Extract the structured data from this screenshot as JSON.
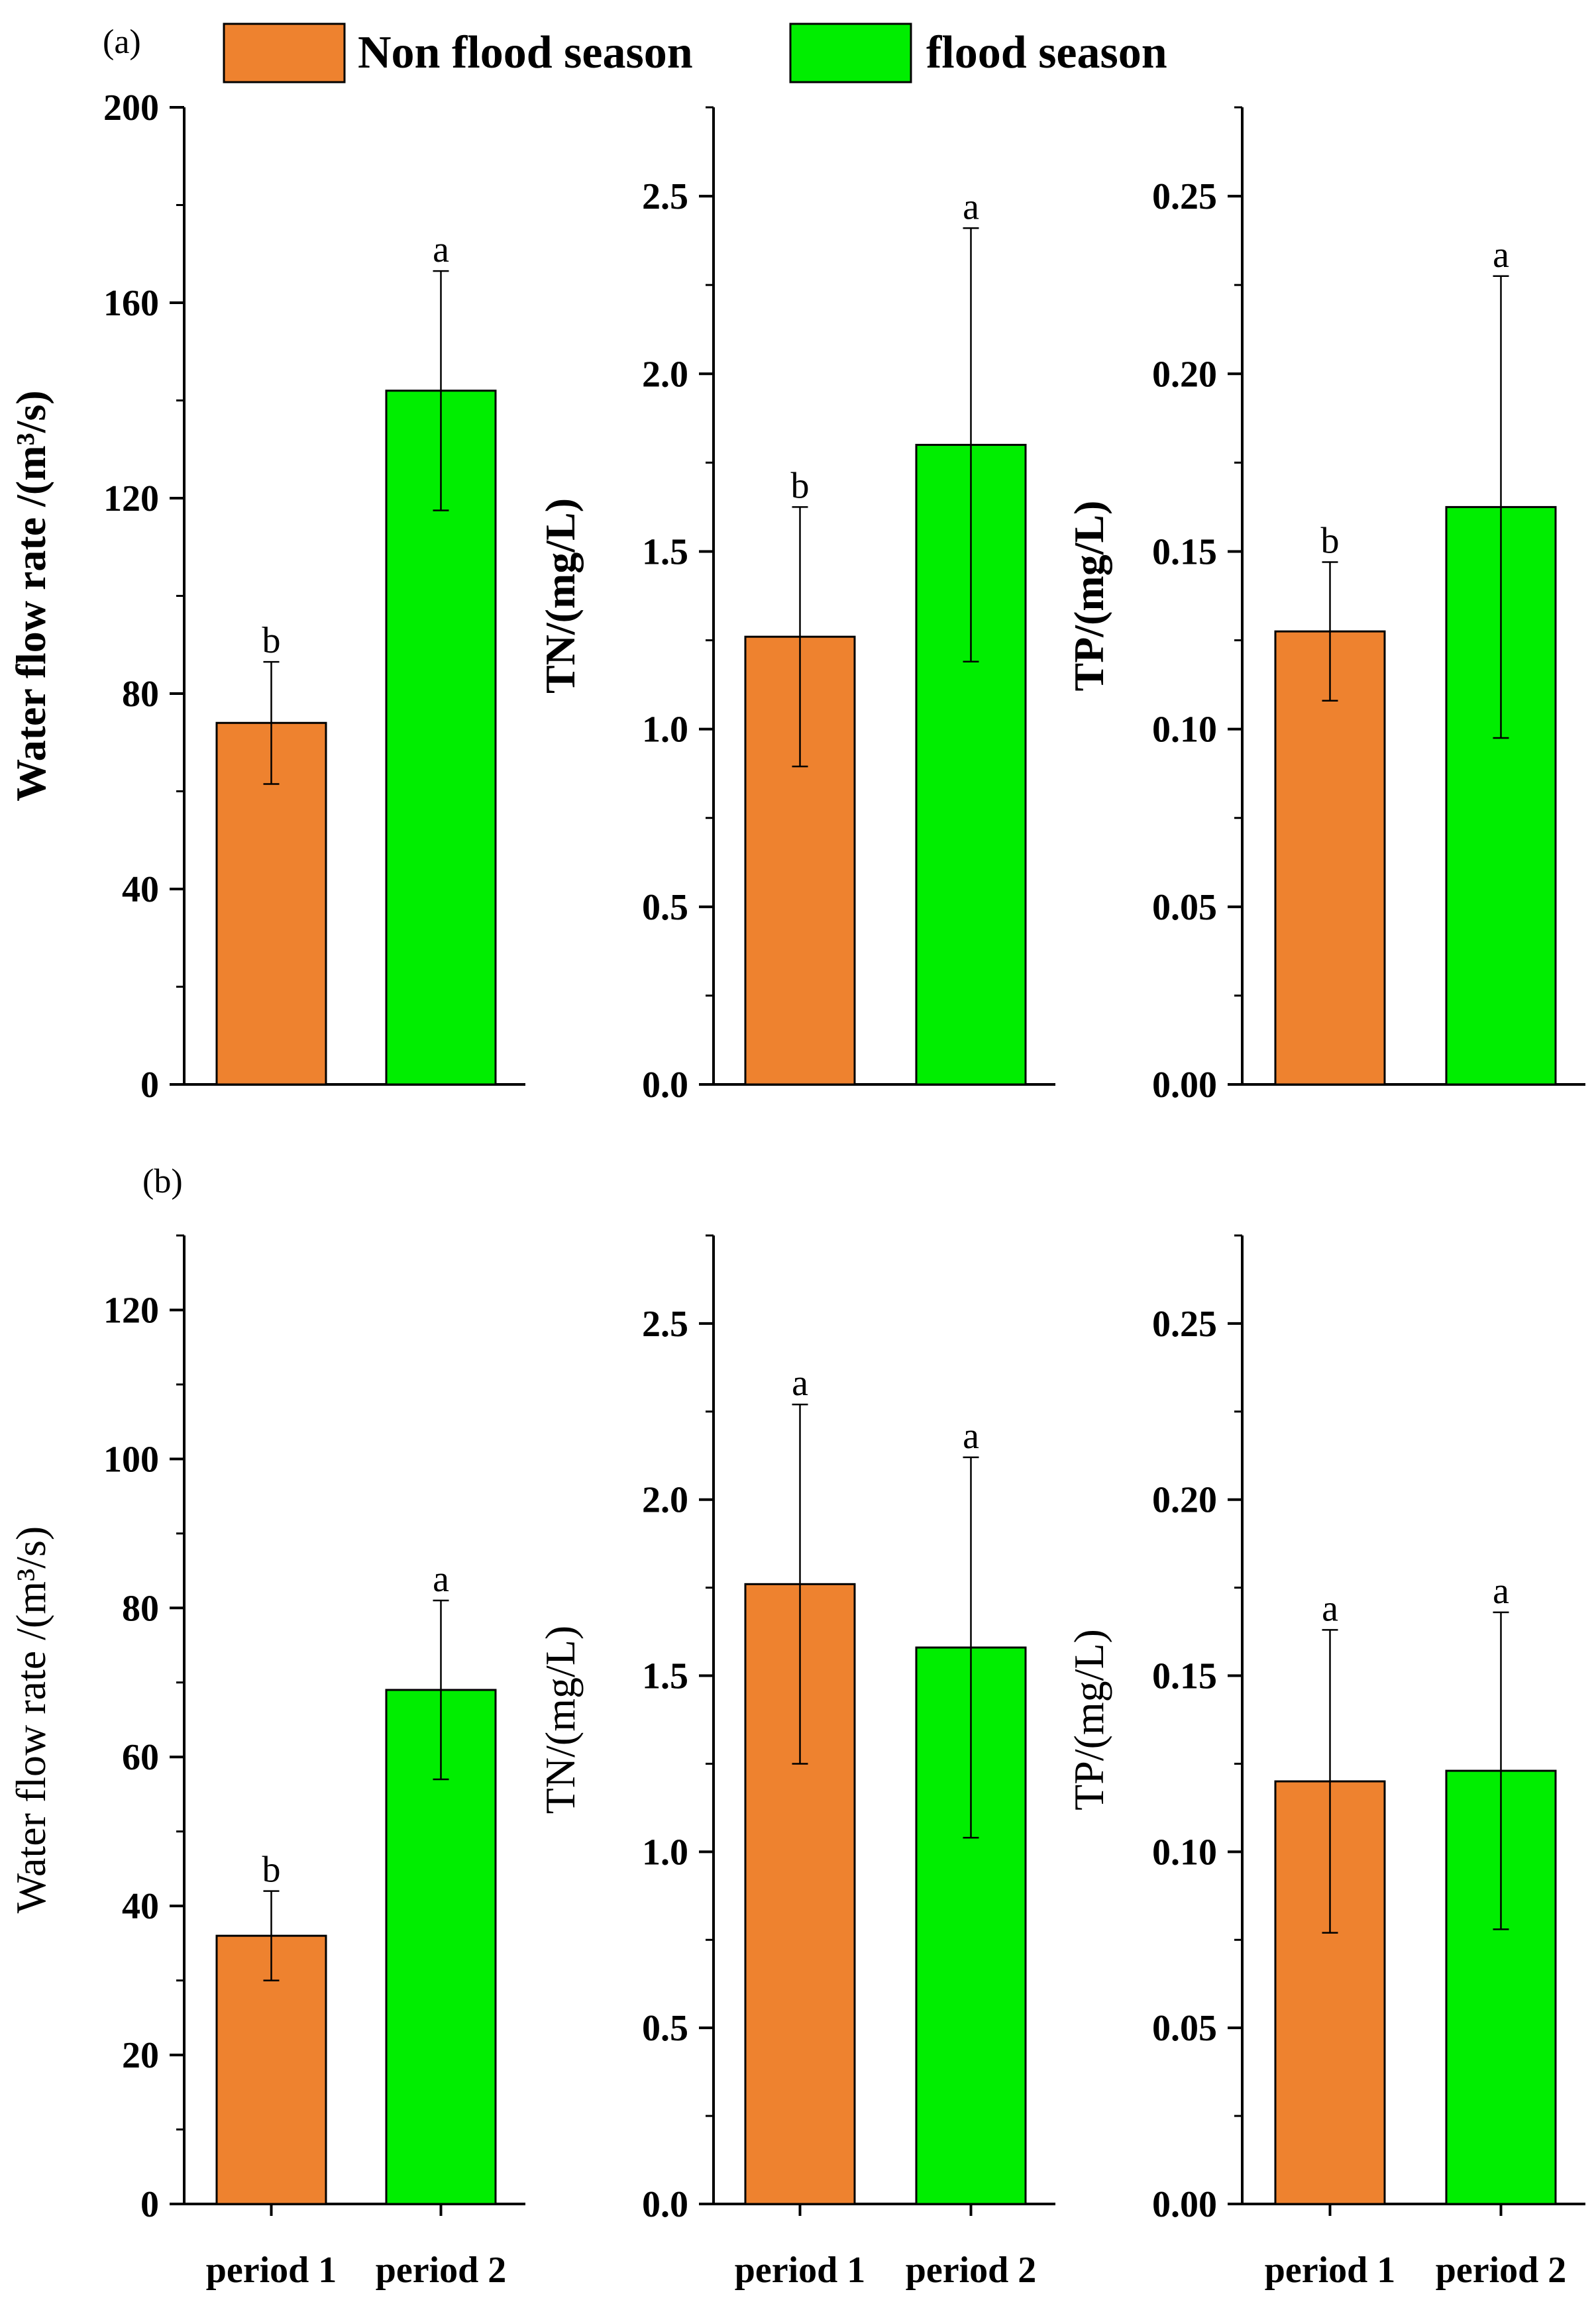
{
  "legend": {
    "items": [
      {
        "label": "Non flood season",
        "color": "#EE822F"
      },
      {
        "label": "flood season",
        "color": "#00EE00"
      }
    ]
  },
  "panel_labels": [
    "(a)",
    "(b)"
  ],
  "x_categories": [
    "period 1",
    "period 2"
  ],
  "chart_data": [
    {
      "type": "bar",
      "panel": "(a)",
      "ylabel": "Water flow rate /(m³/s)",
      "ylabel_bold": true,
      "categories": [
        "period 1",
        "period 2"
      ],
      "values": [
        74,
        142
      ],
      "errors": [
        12.5,
        24.5
      ],
      "sig_letters": [
        "b",
        "a"
      ],
      "colors": [
        "#EE822F",
        "#00EE00"
      ],
      "ylim": [
        0,
        200
      ],
      "yticks": [
        "0",
        "40",
        "80",
        "120",
        "160",
        "200"
      ],
      "minor_step": 20,
      "show_xlabels": false
    },
    {
      "type": "bar",
      "panel": "(a)",
      "ylabel": "TN/(mg/L)",
      "ylabel_bold": true,
      "categories": [
        "period 1",
        "period 2"
      ],
      "values": [
        1.26,
        1.8
      ],
      "errors": [
        0.365,
        0.61
      ],
      "sig_letters": [
        "b",
        "a"
      ],
      "colors": [
        "#EE822F",
        "#00EE00"
      ],
      "ylim": [
        0,
        2.75
      ],
      "yticks": [
        "0.0",
        "0.5",
        "1.0",
        "1.5",
        "2.0",
        "2.5"
      ],
      "minor_step": 0.25,
      "show_xlabels": false
    },
    {
      "type": "bar",
      "panel": "(a)",
      "ylabel": "TP/(mg/L)",
      "ylabel_bold": true,
      "categories": [
        "period 1",
        "period 2"
      ],
      "values": [
        0.1275,
        0.1625
      ],
      "errors": [
        0.0195,
        0.065
      ],
      "sig_letters": [
        "b",
        "a"
      ],
      "colors": [
        "#EE822F",
        "#00EE00"
      ],
      "ylim": [
        0,
        0.275
      ],
      "yticks": [
        "0.00",
        "0.05",
        "0.10",
        "0.15",
        "0.20",
        "0.25"
      ],
      "minor_step": 0.025,
      "show_xlabels": false
    },
    {
      "type": "bar",
      "panel": "(b)",
      "ylabel": "Water flow rate /(m³/s)",
      "ylabel_bold": false,
      "categories": [
        "period 1",
        "period 2"
      ],
      "values": [
        36,
        69
      ],
      "errors": [
        6,
        12
      ],
      "sig_letters": [
        "b",
        "a"
      ],
      "colors": [
        "#EE822F",
        "#00EE00"
      ],
      "ylim": [
        0,
        130
      ],
      "yticks": [
        "0",
        "20",
        "40",
        "60",
        "80",
        "100",
        "120"
      ],
      "minor_step": 10,
      "show_xlabels": true
    },
    {
      "type": "bar",
      "panel": "(b)",
      "ylabel": "TN/(mg/L)",
      "ylabel_bold": false,
      "categories": [
        "period 1",
        "period 2"
      ],
      "values": [
        1.76,
        1.58
      ],
      "errors": [
        0.51,
        0.54
      ],
      "sig_letters": [
        "a",
        "a"
      ],
      "colors": [
        "#EE822F",
        "#00EE00"
      ],
      "ylim": [
        0,
        2.75
      ],
      "yticks": [
        "0.0",
        "0.5",
        "1.0",
        "1.5",
        "2.0",
        "2.5"
      ],
      "minor_step": 0.25,
      "show_xlabels": true
    },
    {
      "type": "bar",
      "panel": "(b)",
      "ylabel": "TP/(mg/L)",
      "ylabel_bold": false,
      "categories": [
        "period 1",
        "period 2"
      ],
      "values": [
        0.12,
        0.123
      ],
      "errors": [
        0.043,
        0.045
      ],
      "sig_letters": [
        "a",
        "a"
      ],
      "colors": [
        "#EE822F",
        "#00EE00"
      ],
      "ylim": [
        0,
        0.275
      ],
      "yticks": [
        "0.00",
        "0.05",
        "0.10",
        "0.15",
        "0.20",
        "0.25"
      ],
      "minor_step": 0.025,
      "show_xlabels": true
    }
  ]
}
